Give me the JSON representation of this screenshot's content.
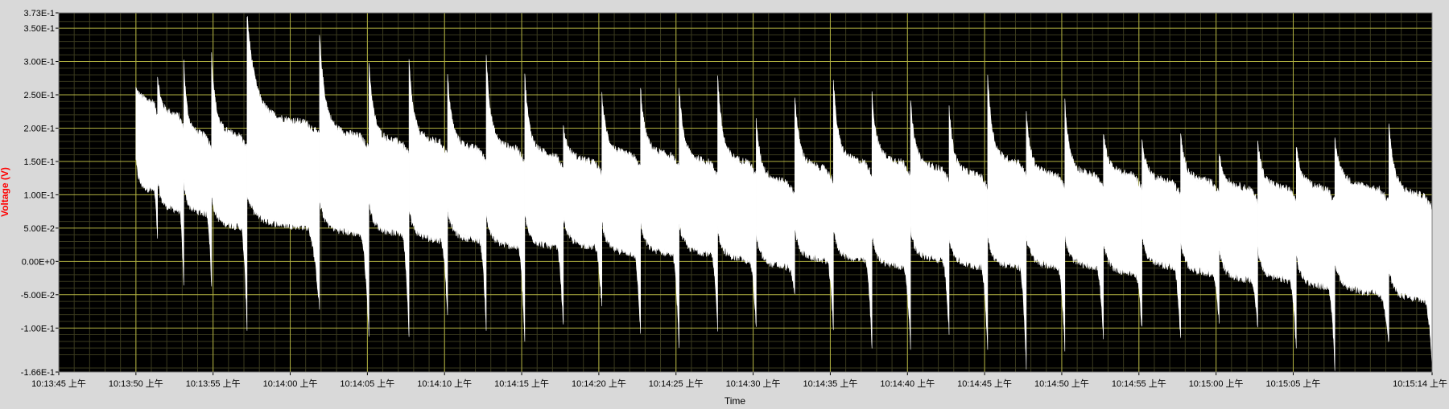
{
  "chart_data": {
    "type": "line",
    "title": "",
    "xlabel": "Time",
    "ylabel": "Voltage (V)",
    "xlim": [
      "10:13:45",
      "10:15:14"
    ],
    "ylim": [
      -0.166,
      0.373
    ],
    "grid": true,
    "legend": "none",
    "colors": {
      "panel_background": "#d9d9d9",
      "plot_background": "#000000",
      "major_grid": "#b0b040",
      "minor_grid": "#3a3a1e",
      "series": "#ffffff",
      "ylabel": "#ff0000",
      "tick_text": "#000000"
    },
    "y_ticks": [
      {
        "value": 0.373,
        "label": "3.73E-1"
      },
      {
        "value": 0.35,
        "label": "3.50E-1"
      },
      {
        "value": 0.3,
        "label": "3.00E-1"
      },
      {
        "value": 0.25,
        "label": "2.50E-1"
      },
      {
        "value": 0.2,
        "label": "2.00E-1"
      },
      {
        "value": 0.15,
        "label": "1.50E-1"
      },
      {
        "value": 0.1,
        "label": "1.00E-1"
      },
      {
        "value": 0.05,
        "label": "5.00E-2"
      },
      {
        "value": 0.0,
        "label": "0.00E+0"
      },
      {
        "value": -0.05,
        "label": "-5.00E-2"
      },
      {
        "value": -0.1,
        "label": "-1.00E-1"
      },
      {
        "value": -0.166,
        "label": "-1.66E-1"
      }
    ],
    "x_ticks": [
      {
        "time": "10:13:45",
        "label": "10:13:45 上午"
      },
      {
        "time": "10:13:50",
        "label": "10:13:50 上午"
      },
      {
        "time": "10:13:55",
        "label": "10:13:55 上午"
      },
      {
        "time": "10:14:00",
        "label": "10:14:00 上午"
      },
      {
        "time": "10:14:05",
        "label": "10:14:05 上午"
      },
      {
        "time": "10:14:10",
        "label": "10:14:10 上午"
      },
      {
        "time": "10:14:15",
        "label": "10:14:15 上午"
      },
      {
        "time": "10:14:20",
        "label": "10:14:20 上午"
      },
      {
        "time": "10:14:25",
        "label": "10:14:25 上午"
      },
      {
        "time": "10:14:30",
        "label": "10:14:30 上午"
      },
      {
        "time": "10:14:35",
        "label": "10:14:35 上午"
      },
      {
        "time": "10:14:40",
        "label": "10:14:40 上午"
      },
      {
        "time": "10:14:45",
        "label": "10:14:45 上午"
      },
      {
        "time": "10:14:50",
        "label": "10:14:50 上午"
      },
      {
        "time": "10:14:55",
        "label": "10:14:55 上午"
      },
      {
        "time": "10:15:00",
        "label": "10:15:00 上午"
      },
      {
        "time": "10:15:05",
        "label": "10:15:05 上午"
      },
      {
        "time": "10:15:14",
        "label": "10:15:14 上午"
      }
    ],
    "series": [
      {
        "color": "#ffffff",
        "signal_start": "10:13:50",
        "signal_end": "10:15:14",
        "pulses": [
          {
            "start": "10:13:50.0",
            "end": "10:13:51.4",
            "peak": 0.26,
            "top": 0.25,
            "bottom": 0.115,
            "trough": 0.03
          },
          {
            "start": "10:13:51.4",
            "end": "10:13:53.1",
            "peak": 0.28,
            "top": 0.23,
            "bottom": 0.085,
            "trough": -0.04
          },
          {
            "start": "10:13:53.1",
            "end": "10:13:54.9",
            "peak": 0.3,
            "top": 0.2,
            "bottom": 0.08,
            "trough": -0.04
          },
          {
            "start": "10:13:54.9",
            "end": "10:13:57.2",
            "peak": 0.31,
            "top": 0.2,
            "bottom": 0.06,
            "trough": -0.1
          },
          {
            "start": "10:13:57.2",
            "end": "10:14:01.9",
            "peak": 0.37,
            "top": 0.22,
            "bottom": 0.06,
            "trough": -0.07
          },
          {
            "start": "10:14:01.9",
            "end": "10:14:05.1",
            "peak": 0.34,
            "top": 0.2,
            "bottom": 0.05,
            "trough": -0.11
          },
          {
            "start": "10:14:05.1",
            "end": "10:14:07.7",
            "peak": 0.3,
            "top": 0.19,
            "bottom": 0.05,
            "trough": -0.11
          },
          {
            "start": "10:14:07.7",
            "end": "10:14:10.2",
            "peak": 0.3,
            "top": 0.19,
            "bottom": 0.04,
            "trough": -0.08
          },
          {
            "start": "10:14:10.2",
            "end": "10:14:12.7",
            "peak": 0.28,
            "top": 0.18,
            "bottom": 0.04,
            "trough": -0.1
          },
          {
            "start": "10:14:12.7",
            "end": "10:14:15.2",
            "peak": 0.31,
            "top": 0.18,
            "bottom": 0.03,
            "trough": -0.12
          },
          {
            "start": "10:14:15.2",
            "end": "10:14:17.7",
            "peak": 0.28,
            "top": 0.17,
            "bottom": 0.03,
            "trough": -0.1
          },
          {
            "start": "10:14:17.7",
            "end": "10:14:20.2",
            "peak": 0.2,
            "top": 0.16,
            "bottom": 0.03,
            "trough": -0.07
          },
          {
            "start": "10:14:20.2",
            "end": "10:14:22.7",
            "peak": 0.25,
            "top": 0.17,
            "bottom": 0.02,
            "trough": -0.11
          },
          {
            "start": "10:14:22.7",
            "end": "10:14:25.2",
            "peak": 0.26,
            "top": 0.17,
            "bottom": 0.02,
            "trough": -0.13
          },
          {
            "start": "10:14:25.2",
            "end": "10:14:27.7",
            "peak": 0.26,
            "top": 0.16,
            "bottom": 0.02,
            "trough": -0.1
          },
          {
            "start": "10:14:27.7",
            "end": "10:14:30.2",
            "peak": 0.28,
            "top": 0.16,
            "bottom": 0.01,
            "trough": -0.1
          },
          {
            "start": "10:14:30.2",
            "end": "10:14:32.7",
            "peak": 0.21,
            "top": 0.13,
            "bottom": 0.0,
            "trough": -0.05
          },
          {
            "start": "10:14:32.7",
            "end": "10:14:35.2",
            "peak": 0.25,
            "top": 0.15,
            "bottom": 0.01,
            "trough": -0.1
          },
          {
            "start": "10:14:35.2",
            "end": "10:14:37.7",
            "peak": 0.27,
            "top": 0.16,
            "bottom": 0.01,
            "trough": -0.13
          },
          {
            "start": "10:14:37.7",
            "end": "10:14:40.2",
            "peak": 0.25,
            "top": 0.16,
            "bottom": 0.0,
            "trough": -0.13
          },
          {
            "start": "10:14:40.2",
            "end": "10:14:42.7",
            "peak": 0.24,
            "top": 0.15,
            "bottom": 0.01,
            "trough": -0.11
          },
          {
            "start": "10:14:42.7",
            "end": "10:14:45.2",
            "peak": 0.23,
            "top": 0.14,
            "bottom": 0.0,
            "trough": -0.13
          },
          {
            "start": "10:14:45.2",
            "end": "10:14:47.7",
            "peak": 0.28,
            "top": 0.16,
            "bottom": 0.0,
            "trough": -0.16
          },
          {
            "start": "10:14:47.7",
            "end": "10:14:50.2",
            "peak": 0.22,
            "top": 0.14,
            "bottom": 0.0,
            "trough": -0.13
          },
          {
            "start": "10:14:50.2",
            "end": "10:14:52.7",
            "peak": 0.24,
            "top": 0.14,
            "bottom": 0.0,
            "trough": -0.12
          },
          {
            "start": "10:14:52.7",
            "end": "10:14:55.2",
            "peak": 0.19,
            "top": 0.14,
            "bottom": -0.01,
            "trough": -0.1
          },
          {
            "start": "10:14:55.2",
            "end": "10:14:57.7",
            "peak": 0.18,
            "top": 0.13,
            "bottom": 0.0,
            "trough": -0.12
          },
          {
            "start": "10:14:57.7",
            "end": "10:15:00.2",
            "peak": 0.19,
            "top": 0.13,
            "bottom": -0.01,
            "trough": -0.09
          },
          {
            "start": "10:15:00.2",
            "end": "10:15:02.7",
            "peak": 0.16,
            "top": 0.12,
            "bottom": -0.02,
            "trough": -0.1
          },
          {
            "start": "10:15:02.7",
            "end": "10:15:05.2",
            "peak": 0.18,
            "top": 0.12,
            "bottom": -0.02,
            "trough": -0.13
          },
          {
            "start": "10:15:05.2",
            "end": "10:15:07.7",
            "peak": 0.17,
            "top": 0.12,
            "bottom": -0.03,
            "trough": -0.16
          },
          {
            "start": "10:15:07.7",
            "end": "10:15:11.2",
            "peak": 0.18,
            "top": 0.12,
            "bottom": -0.04,
            "trough": -0.12
          },
          {
            "start": "10:15:11.2",
            "end": "10:15:14.0",
            "peak": 0.21,
            "top": 0.11,
            "bottom": -0.05,
            "trough": -0.15
          }
        ]
      }
    ]
  }
}
